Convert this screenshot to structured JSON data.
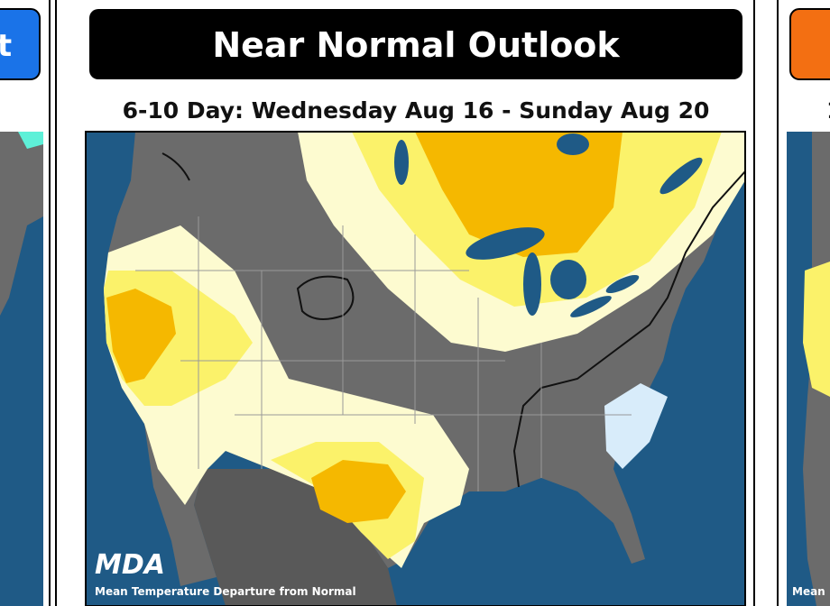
{
  "left_card": {
    "button": "t"
  },
  "main_card": {
    "title": "Near Normal Outlook",
    "subtitle": "6-10 Day: Wednesday Aug 16 - Sunday Aug 20",
    "logo": "MDA",
    "caption": "Mean Temperature Departure from Normal"
  },
  "right_card": {
    "subtitle": "1",
    "caption": "Mean"
  }
}
